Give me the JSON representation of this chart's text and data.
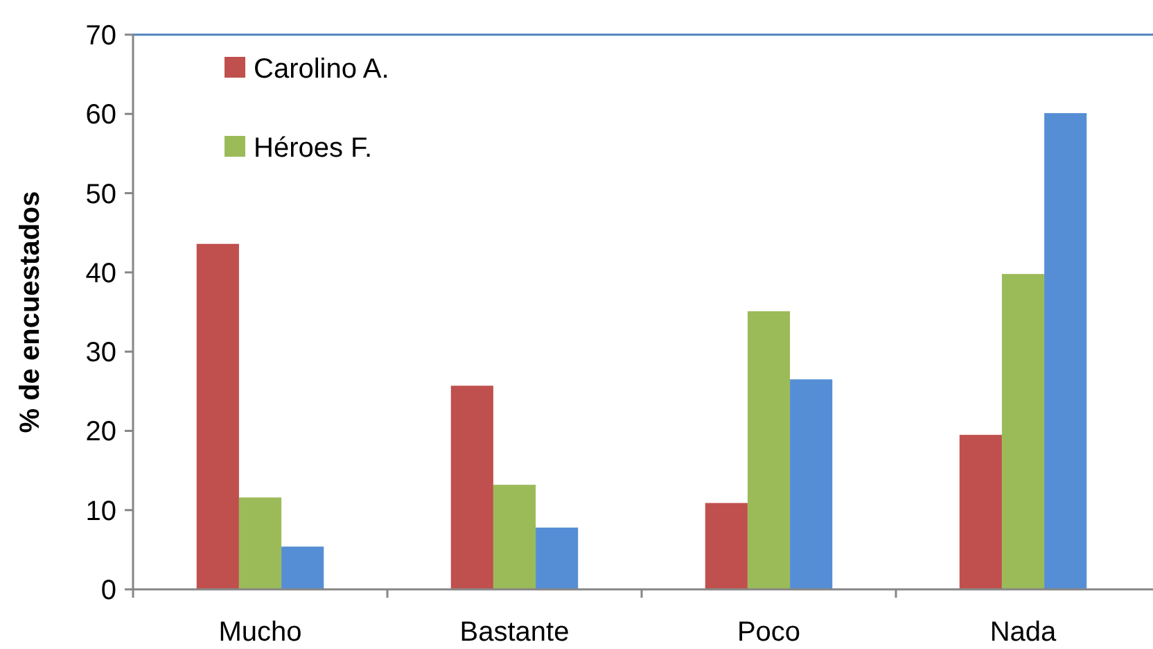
{
  "chart_data": {
    "type": "bar",
    "ylabel": "% de encuestados",
    "categories": [
      "Mucho",
      "Bastante",
      "Poco",
      "Nada"
    ],
    "series": [
      {
        "name": "Carolino A.",
        "color": "#c0504d",
        "values": [
          43.6,
          25.7,
          10.9,
          19.5
        ]
      },
      {
        "name": "Héroes F.",
        "color": "#9bbb59",
        "values": [
          11.6,
          13.2,
          35.1,
          39.8
        ]
      },
      {
        "color": "#558ed5",
        "values": [
          5.4,
          7.8,
          26.5,
          60.1
        ]
      }
    ],
    "ylim": [
      0,
      70
    ],
    "yticks": [
      0,
      10,
      20,
      30,
      40,
      50,
      60,
      70
    ],
    "grid": false,
    "legend": "top left"
  }
}
